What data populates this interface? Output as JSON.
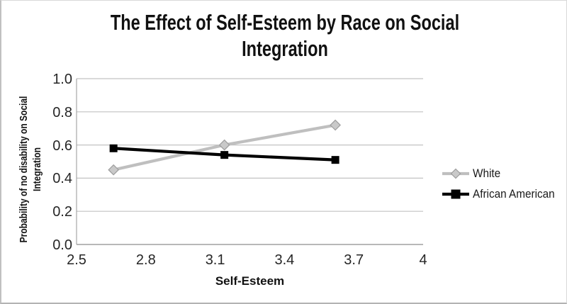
{
  "figure_title": {
    "line1": "The Effect of Self-Esteem by Race on Social",
    "line2": "Integration"
  },
  "chart_data": {
    "type": "line",
    "title": "The Effect of Self-Esteem by Race on Social Integration",
    "xlabel": "Self-Esteem",
    "ylabel": "Probability of no disability on Social Integration",
    "ylabel_lines": [
      "Probability of no disability on Social",
      "Integration"
    ],
    "x": [
      2.66,
      3.14,
      3.62
    ],
    "series": [
      {
        "name": "White",
        "color": "#bfbfbf",
        "marker": "diamond",
        "marker_fill": "#c9c9c9",
        "marker_stroke": "#9d9d9d",
        "values": [
          0.45,
          0.6,
          0.72
        ]
      },
      {
        "name": "African American",
        "color": "#000000",
        "marker": "square",
        "marker_fill": "#000000",
        "marker_stroke": "#000000",
        "values": [
          0.58,
          0.54,
          0.51
        ]
      }
    ],
    "xlim": [
      2.5,
      4.0
    ],
    "ylim": [
      0.0,
      1.0
    ],
    "xticks": [
      "2.5",
      "2.8",
      "3.1",
      "3.4",
      "3.7",
      "4"
    ],
    "xtick_values": [
      2.5,
      2.8,
      3.1,
      3.4,
      3.7,
      4.0
    ],
    "yticks": [
      "0.0",
      "0.2",
      "0.4",
      "0.6",
      "0.8",
      "1.0"
    ],
    "ytick_values": [
      0.0,
      0.2,
      0.4,
      0.6,
      0.8,
      1.0
    ],
    "grid": true,
    "legend_position": "right",
    "colors": {
      "gridline": "#c2c2c2",
      "axis": "#a6a6a6",
      "text": "#262626",
      "title_text": "#111111"
    }
  }
}
